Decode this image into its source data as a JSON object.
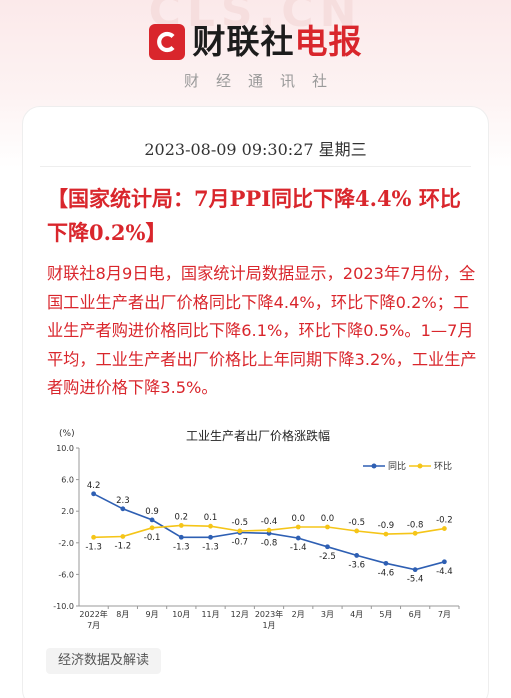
{
  "brand": {
    "watermark": "CLS.CN",
    "logo_glyph": "C",
    "name_part1": "财联社",
    "name_part2": "电报",
    "subtitle": "财经通讯社",
    "brand_color": "#d9262c"
  },
  "article": {
    "datetime": "2023-08-09 09:30:27 星期三",
    "headline": "【国家统计局：7月PPI同比下降4.4% 环比下降0.2%】",
    "body": "财联社8月9日电，国家统计局数据显示，2023年7月份，全国工业生产者出厂价格同比下降4.4%，环比下降0.2%；工业生产者购进价格同比下降6.1%，环比下降0.5%。1—7月平均，工业生产者出厂价格比上年同期下降3.2%，工业生产者购进价格下降3.5%。"
  },
  "tag": {
    "label": "经济数据及解读"
  },
  "chart_data": {
    "type": "line",
    "title": "工业生产者出厂价格涨跌幅",
    "unit_label": "(%)",
    "ylim": [
      -10.0,
      10.0
    ],
    "yticks": [
      "10.0",
      "6.0",
      "2.0",
      "-2.0",
      "-6.0",
      "-10.0"
    ],
    "ytick_values": [
      10,
      6,
      2,
      -2,
      -6,
      -10
    ],
    "categories": [
      "2022年\n7月",
      "8月",
      "9月",
      "10月",
      "11月",
      "12月",
      "2023年\n1月",
      "2月",
      "3月",
      "4月",
      "5月",
      "6月",
      "7月"
    ],
    "legend_position": "top-right",
    "grid": false,
    "series": [
      {
        "name": "同比",
        "color": "#2e5fb3",
        "values": [
          4.2,
          2.3,
          0.9,
          -1.3,
          -1.3,
          -0.7,
          -0.8,
          -1.4,
          -2.5,
          -3.6,
          -4.6,
          -5.4,
          -4.4
        ],
        "labels": [
          "4.2",
          "2.3",
          "0.9",
          "-1.3",
          "-1.3",
          "-0.7",
          "-0.8",
          "-1.4",
          "-2.5",
          "-3.6",
          "-4.6",
          "-5.4",
          "-4.4"
        ]
      },
      {
        "name": "环比",
        "color": "#f5c518",
        "values": [
          -1.3,
          -1.2,
          -0.1,
          0.2,
          0.1,
          -0.5,
          -0.4,
          0.0,
          0.0,
          -0.5,
          -0.9,
          -0.8,
          -0.2
        ],
        "labels": [
          "-1.3",
          "-1.2",
          "-0.1",
          "0.2",
          "0.1",
          "-0.5",
          "-0.4",
          "0.0",
          "0.0",
          "-0.5",
          "-0.9",
          "-0.8",
          "-0.2"
        ]
      }
    ]
  }
}
